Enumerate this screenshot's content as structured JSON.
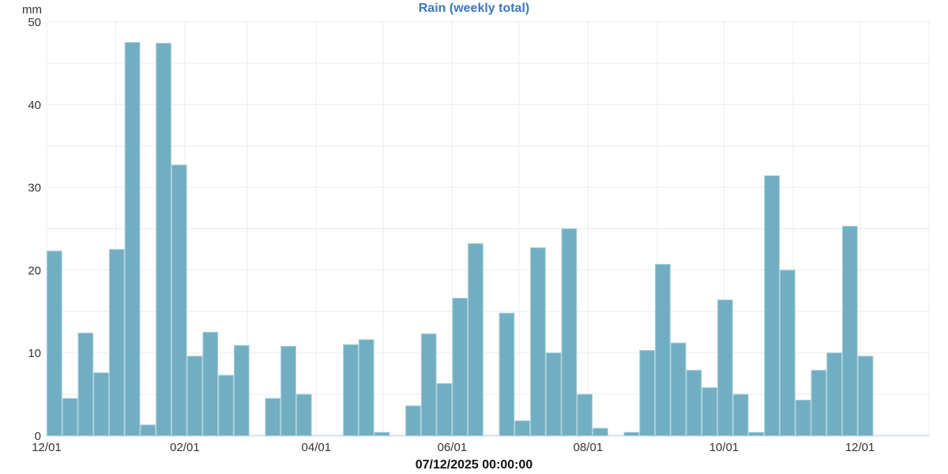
{
  "header": {
    "title": "Rain (weekly total)",
    "unit_label": "mm"
  },
  "footer": {
    "timestamp_label": "07/12/2025 00:00:00"
  },
  "colors": {
    "background": "#ffffff",
    "title": "#3a78bc",
    "bar_fill": "#72aec2",
    "bar_stroke": "#a6cfdc",
    "grid_line": "#ececec",
    "baseline": "#cfe2ea",
    "axis_text": "#333333",
    "footer_text": "#111111"
  },
  "y_axis": {
    "tick_labels": [
      "0",
      "10",
      "20",
      "30",
      "40",
      "50"
    ]
  },
  "x_axis": {
    "tick_labels": [
      "12/01",
      "02/01",
      "04/01",
      "06/01",
      "08/01",
      "10/01",
      "12/01"
    ]
  },
  "chart_data": {
    "type": "bar",
    "title": "Rain (weekly total)",
    "ylabel": "mm",
    "ylim": [
      0,
      50
    ],
    "y_major_step": 10,
    "y_minor_step": 5,
    "grid": true,
    "legend": "none",
    "footer_label": "07/12/2025 00:00:00",
    "x_tick_labels": [
      "12/01",
      "02/01",
      "04/01",
      "06/01",
      "08/01",
      "10/01",
      "12/01"
    ],
    "labeled_month_indices": [
      0,
      2,
      4,
      6,
      8,
      10,
      12
    ],
    "month_day_offsets": [
      0,
      31,
      62,
      90,
      121,
      151,
      182,
      212,
      243,
      274,
      304,
      335,
      365,
      396
    ],
    "total_days": 396,
    "bar_width_days": 7,
    "weekly_totals_mm": [
      22.3,
      4.5,
      12.4,
      7.6,
      22.5,
      47.5,
      1.3,
      47.4,
      32.7,
      9.6,
      12.5,
      7.3,
      10.9,
      0,
      4.5,
      10.8,
      5.0,
      0,
      0,
      11.0,
      11.6,
      0.4,
      0,
      3.6,
      12.3,
      6.3,
      16.6,
      23.2,
      0,
      14.8,
      1.8,
      22.7,
      10.0,
      25.0,
      5.0,
      0.9,
      0,
      0.4,
      10.3,
      20.7,
      11.2,
      7.9,
      5.8,
      16.4,
      5.0,
      0.4,
      31.4,
      20.0,
      4.3,
      7.9,
      10.0,
      25.3,
      9.6
    ]
  }
}
